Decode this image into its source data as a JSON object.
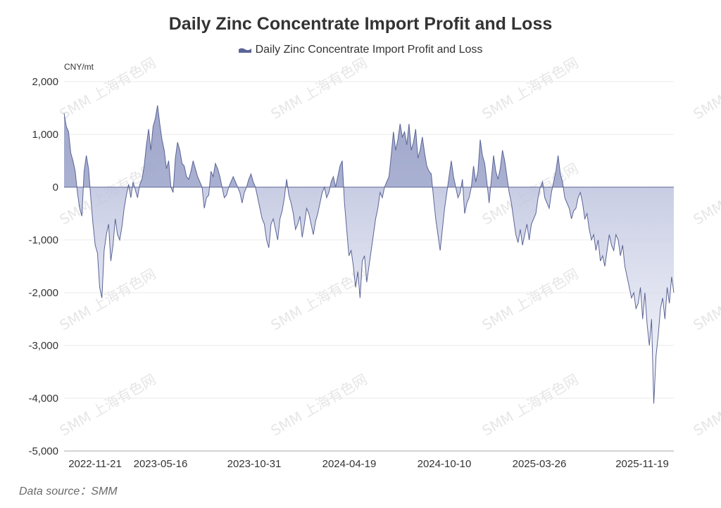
{
  "colors": {
    "series": "#5b6496",
    "fill_top": "#9ea6c9",
    "grid": "#e8e8e8",
    "axis": "#a9a9a9"
  },
  "watermark": "SMM 上海有色网",
  "source": "Data source：SMM",
  "chart_data": {
    "type": "area",
    "title": "Daily Zinc Concentrate Import Profit and Loss",
    "legend": [
      "Daily Zinc Concentrate Import Profit and Loss"
    ],
    "legend_position": "top-center",
    "ylabel": "CNY/mt",
    "ylim": [
      -5000,
      2000
    ],
    "yticks": [
      2000,
      1000,
      0,
      -1000,
      -2000,
      -3000,
      -4000,
      -5000
    ],
    "ytick_labels": [
      "2,000",
      "1,000",
      "0",
      "-1,000",
      "-2,000",
      "-3,000",
      "-4,000",
      "-5,000"
    ],
    "xtick_labels": [
      "2022-11-21",
      "2023-05-16",
      "2023-10-31",
      "2024-04-19",
      "2024-10-10",
      "2025-03-26",
      "2025-11-19"
    ],
    "xtick_index": [
      0,
      1,
      2,
      3,
      4,
      5,
      6
    ],
    "grid": true,
    "series": [
      {
        "name": "Daily Zinc Concentrate Import Profit and Loss",
        "x_start": "2022-11-21",
        "x_end": "2025-11-19",
        "values": [
          1400,
          1150,
          1050,
          650,
          500,
          300,
          -100,
          -400,
          -550,
          300,
          600,
          350,
          -200,
          -700,
          -1100,
          -1250,
          -1900,
          -2100,
          -1200,
          -900,
          -700,
          -1400,
          -1100,
          -600,
          -900,
          -1000,
          -750,
          -400,
          -150,
          50,
          -200,
          100,
          -50,
          -200,
          50,
          150,
          400,
          800,
          1100,
          700,
          1150,
          1300,
          1550,
          1200,
          900,
          700,
          350,
          500,
          0,
          -100,
          550,
          850,
          700,
          450,
          400,
          200,
          150,
          300,
          500,
          350,
          200,
          100,
          0,
          -400,
          -200,
          -150,
          300,
          200,
          450,
          350,
          200,
          0,
          -200,
          -150,
          0,
          100,
          200,
          100,
          0,
          -100,
          -300,
          -100,
          0,
          150,
          250,
          100,
          0,
          -200,
          -400,
          -600,
          -700,
          -1000,
          -1150,
          -700,
          -600,
          -800,
          -1000,
          -600,
          -450,
          -200,
          150,
          -150,
          -300,
          -500,
          -800,
          -700,
          -550,
          -950,
          -700,
          -400,
          -500,
          -700,
          -900,
          -650,
          -500,
          -300,
          -100,
          0,
          -200,
          -100,
          100,
          200,
          0,
          200,
          400,
          500,
          -300,
          -800,
          -1300,
          -1200,
          -1500,
          -1900,
          -1600,
          -2100,
          -1400,
          -1300,
          -1800,
          -1500,
          -1200,
          -900,
          -600,
          -400,
          -100,
          -200,
          0,
          100,
          200,
          600,
          1050,
          700,
          900,
          1200,
          950,
          1050,
          800,
          1200,
          700,
          850,
          1100,
          550,
          700,
          950,
          650,
          400,
          300,
          250,
          -200,
          -600,
          -900,
          -1200,
          -800,
          -400,
          -100,
          200,
          500,
          200,
          0,
          -200,
          -100,
          150,
          -500,
          -300,
          -200,
          0,
          400,
          100,
          300,
          900,
          600,
          450,
          100,
          -300,
          150,
          600,
          300,
          150,
          350,
          700,
          500,
          200,
          -100,
          -300,
          -600,
          -900,
          -1050,
          -800,
          -1100,
          -900,
          -700,
          -1000,
          -700,
          -600,
          -500,
          -200,
          0,
          100,
          -200,
          -300,
          -400,
          -100,
          100,
          300,
          600,
          250,
          100,
          -200,
          -300,
          -400,
          -600,
          -450,
          -400,
          -200,
          -100,
          -300,
          -600,
          -500,
          -800,
          -1000,
          -900,
          -1200,
          -1000,
          -1400,
          -1300,
          -1500,
          -1200,
          -900,
          -1100,
          -1200,
          -900,
          -1000,
          -1300,
          -1100,
          -1500,
          -1700,
          -1900,
          -2100,
          -2000,
          -2300,
          -2200,
          -1900,
          -2500,
          -2000,
          -2600,
          -3000,
          -2500,
          -4100,
          -3200,
          -2800,
          -2300,
          -2100,
          -2500,
          -1900,
          -2200,
          -1700,
          -2000
        ]
      }
    ]
  }
}
